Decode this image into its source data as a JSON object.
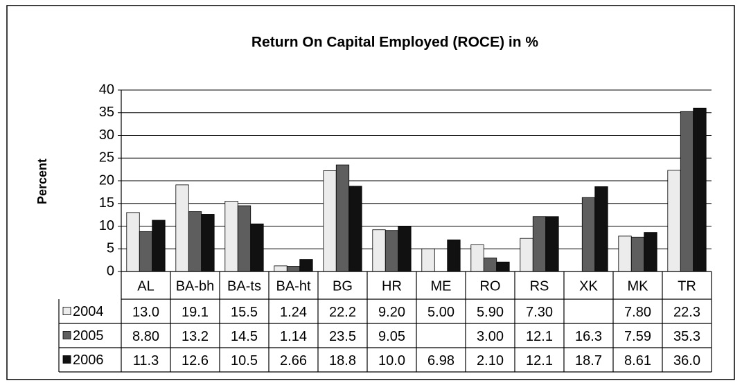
{
  "chart_data": {
    "type": "bar",
    "title": "Return On Capital Employed (ROCE) in %",
    "y_label": "Percent",
    "categories": [
      "AL",
      "BA-bh",
      "BA-ts",
      "BA-ht",
      "BG",
      "HR",
      "ME",
      "RO",
      "RS",
      "XK",
      "MK",
      "TR"
    ],
    "series": [
      {
        "name": "2004",
        "color": "#ececec",
        "values": [
          13.0,
          19.1,
          15.5,
          1.24,
          22.2,
          9.2,
          5.0,
          5.9,
          7.3,
          null,
          7.8,
          22.3
        ],
        "value_labels": [
          "13.0",
          "19.1",
          "15.5",
          "1.24",
          "22.2",
          "9.20",
          "5.00",
          "5.90",
          "7.30",
          null,
          "7.80",
          "22.3"
        ]
      },
      {
        "name": "2005",
        "color": "#5e5e5e",
        "values": [
          8.8,
          13.2,
          14.5,
          1.14,
          23.5,
          9.05,
          null,
          3.0,
          12.1,
          16.3,
          7.59,
          35.3
        ],
        "value_labels": [
          "8.80",
          "13.2",
          "14.5",
          "1.14",
          "23.5",
          "9.05",
          null,
          "3.00",
          "12.1",
          "16.3",
          "7.59",
          "35.3"
        ]
      },
      {
        "name": "2006",
        "color": "#111111",
        "values": [
          11.3,
          12.6,
          10.5,
          2.66,
          18.8,
          10.0,
          6.98,
          2.1,
          12.1,
          18.7,
          8.61,
          36.0
        ],
        "value_labels": [
          "11.3",
          "12.6",
          "10.5",
          "2.66",
          "18.8",
          "10.0",
          "6.98",
          "2.10",
          "12.1",
          "18.7",
          "8.61",
          "36.0"
        ]
      }
    ],
    "ylim": [
      0,
      40
    ],
    "yticks": [
      0,
      5,
      10,
      15,
      20,
      25,
      30,
      35,
      40
    ],
    "grid": true
  }
}
